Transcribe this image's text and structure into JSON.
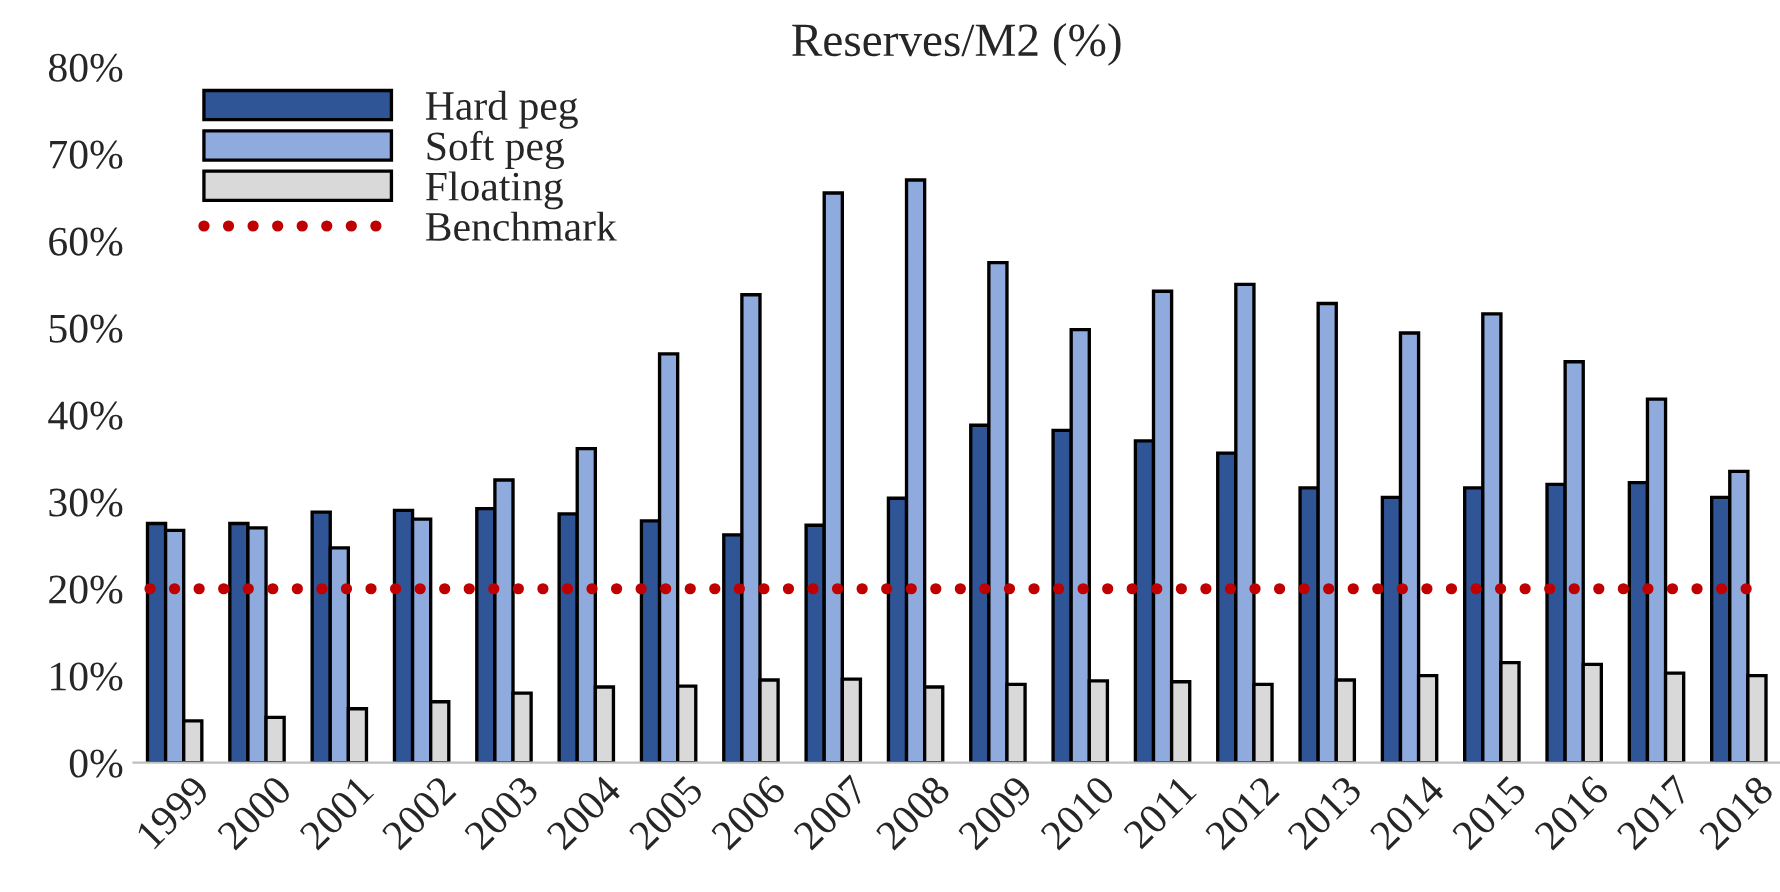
{
  "chart_data": {
    "type": "bar",
    "title": "Reserves/M2 (%)",
    "categories": [
      "1999",
      "2000",
      "2001",
      "2002",
      "2003",
      "2004",
      "2005",
      "2006",
      "2007",
      "2008",
      "2009",
      "2010",
      "2011",
      "2012",
      "2013",
      "2014",
      "2015",
      "2016",
      "2017",
      "2018"
    ],
    "series": [
      {
        "name": "Hard peg",
        "color": "#2f5597",
        "values": [
          27.5,
          27.5,
          28.8,
          29,
          29.2,
          28.6,
          27.8,
          26.2,
          27.3,
          30.4,
          38.8,
          38.2,
          37,
          35.6,
          31.6,
          30.5,
          31.6,
          32,
          32.2,
          30.5
        ]
      },
      {
        "name": "Soft peg",
        "color": "#8faadc",
        "values": [
          26.7,
          27,
          24.7,
          28,
          32.5,
          36.1,
          47,
          53.8,
          65.5,
          67,
          57.5,
          49.8,
          54.2,
          55,
          52.8,
          49.4,
          51.6,
          46.1,
          41.8,
          33.5
        ]
      },
      {
        "name": "Floating",
        "color": "#d9d9d9",
        "values": [
          4.8,
          5.2,
          6.2,
          7,
          8,
          8.7,
          8.8,
          9.5,
          9.6,
          8.7,
          9,
          9.4,
          9.3,
          9,
          9.5,
          10,
          11.5,
          11.3,
          10.3,
          10
        ]
      }
    ],
    "ref_lines": [
      {
        "axis": "y",
        "value": 20,
        "label": "Benchmark",
        "color": "#c00000",
        "line_style": "dotted"
      }
    ],
    "ylim": [
      0,
      80
    ],
    "yticks": [
      {
        "value": 0,
        "label": "0%"
      },
      {
        "value": 10,
        "label": "10%"
      },
      {
        "value": 20,
        "label": "20%"
      },
      {
        "value": 30,
        "label": "30%"
      },
      {
        "value": 40,
        "label": "40%"
      },
      {
        "value": 50,
        "label": "50%"
      },
      {
        "value": 60,
        "label": "60%"
      },
      {
        "value": 70,
        "label": "70%"
      },
      {
        "value": 80,
        "label": "80%"
      }
    ],
    "legend": "top left",
    "grid": false
  }
}
